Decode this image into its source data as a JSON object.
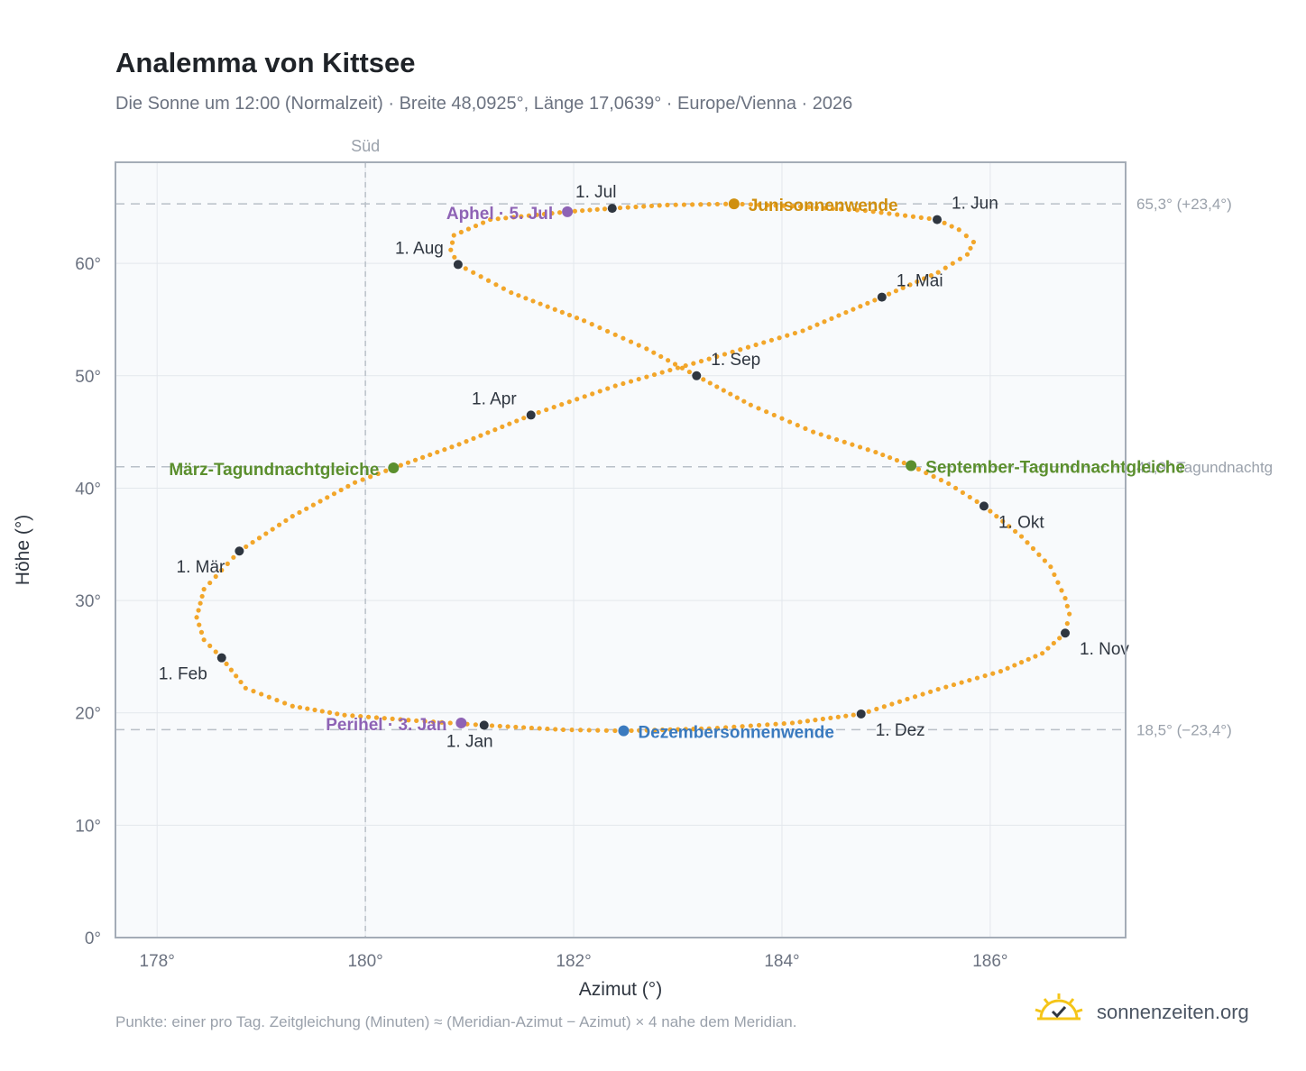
{
  "header": {
    "title": "Analemma von Kittsee",
    "subtitle": "Die Sonne um 12:00 (Normalzeit) · Breite 48,0925°, Länge 17,0639° · Europe/Vienna · 2026"
  },
  "footer": {
    "note": "Punkte: einer pro Tag. Zeitgleichung (Minuten) ≈ (Meridian-Azimut − Azimut) × 4 nahe dem Meridian.",
    "brand": "sonnenzeiten.org"
  },
  "colors": {
    "curve": "#f2a62a",
    "month_marker": "#2f3640",
    "solstice_june": "#cf8f0f",
    "solstice_dec": "#3a7abf",
    "equinox": "#5b8f2e",
    "apsis": "#8e63b5",
    "grid": "#e3e7ec",
    "plot_bg": "#f8fafc",
    "axis_frame": "#a4acb7",
    "reference_line": "#b9c0c8",
    "logo": "#f5c518"
  },
  "icons": {
    "logo": "sun-check-icon"
  },
  "chart_data": {
    "type": "scatter",
    "xlabel": "Azimut (°)",
    "ylabel": "Höhe (°)",
    "xlim": [
      177.6,
      187.3
    ],
    "ylim": [
      0,
      69
    ],
    "x_ticks": [
      {
        "value": 178,
        "label": "178°"
      },
      {
        "value": 180,
        "label": "180°"
      },
      {
        "value": 182,
        "label": "182°"
      },
      {
        "value": 184,
        "label": "184°"
      },
      {
        "value": 186,
        "label": "186°"
      }
    ],
    "y_ticks": [
      {
        "value": 0,
        "label": "0°"
      },
      {
        "value": 10,
        "label": "10°"
      },
      {
        "value": 20,
        "label": "20°"
      },
      {
        "value": 30,
        "label": "30°"
      },
      {
        "value": 40,
        "label": "40°"
      },
      {
        "value": 50,
        "label": "50°"
      },
      {
        "value": 60,
        "label": "60°"
      }
    ],
    "grid": true,
    "south_line": {
      "x": 180,
      "label": "Süd"
    },
    "reference_lines": [
      {
        "y": 65.3,
        "label": "65,3° (+23,4°)"
      },
      {
        "y": 41.9,
        "label": "41,9° Tagundnachtg"
      },
      {
        "y": 18.5,
        "label": "18,5° (−23,4°)"
      }
    ],
    "month_points": [
      {
        "label": "1. Jan",
        "x": 181.14,
        "y": 18.9,
        "anchor": "below"
      },
      {
        "label": "1. Feb",
        "x": 178.62,
        "y": 24.9,
        "anchor": "below-left"
      },
      {
        "label": "1. Mär",
        "x": 178.79,
        "y": 34.4,
        "anchor": "below-left"
      },
      {
        "label": "1. Apr",
        "x": 181.59,
        "y": 46.5,
        "anchor": "above-left"
      },
      {
        "label": "1. Mai",
        "x": 184.96,
        "y": 57.0,
        "anchor": "above-right"
      },
      {
        "label": "1. Jun",
        "x": 185.49,
        "y": 63.9,
        "anchor": "above-right"
      },
      {
        "label": "1. Jul",
        "x": 182.37,
        "y": 64.9,
        "anchor": "above-left"
      },
      {
        "label": "1. Aug",
        "x": 180.89,
        "y": 59.9,
        "anchor": "above-left"
      },
      {
        "label": "1. Sep",
        "x": 183.18,
        "y": 50.0,
        "anchor": "above-right"
      },
      {
        "label": "1. Okt",
        "x": 185.94,
        "y": 38.4,
        "anchor": "below-right"
      },
      {
        "label": "1. Nov",
        "x": 186.72,
        "y": 27.1,
        "anchor": "below-right"
      },
      {
        "label": "1. Dez",
        "x": 184.76,
        "y": 19.9,
        "anchor": "below-right"
      }
    ],
    "special_points": [
      {
        "label": "Junisonnenwende",
        "x": 183.54,
        "y": 65.3,
        "color": "#cf8f0f",
        "anchor": "right"
      },
      {
        "label": "Dezembersonnenwende",
        "x": 182.48,
        "y": 18.4,
        "color": "#3a7abf",
        "anchor": "right"
      },
      {
        "label": "März-Tagundnachtgleiche",
        "x": 180.27,
        "y": 41.8,
        "color": "#5b8f2e",
        "anchor": "left"
      },
      {
        "label": "September-Tagundnachtgleiche",
        "x": 185.24,
        "y": 42.0,
        "color": "#5b8f2e",
        "anchor": "right"
      },
      {
        "label": "Aphel · 5. Jul",
        "x": 181.94,
        "y": 64.6,
        "color": "#8e63b5",
        "anchor": "left"
      },
      {
        "label": "Perihel · 3. Jan",
        "x": 180.92,
        "y": 19.1,
        "color": "#8e63b5",
        "anchor": "left"
      }
    ],
    "analemma_path": [
      [
        181.14,
        18.9
      ],
      [
        180.49,
        19.3
      ],
      [
        179.8,
        19.8
      ],
      [
        179.3,
        20.6
      ],
      [
        178.85,
        22.2
      ],
      [
        178.62,
        24.9
      ],
      [
        178.45,
        26.5
      ],
      [
        178.38,
        28.5
      ],
      [
        178.45,
        31.0
      ],
      [
        178.79,
        34.4
      ],
      [
        179.3,
        37.5
      ],
      [
        179.9,
        40.5
      ],
      [
        180.27,
        41.8
      ],
      [
        180.9,
        43.9
      ],
      [
        181.59,
        46.5
      ],
      [
        182.4,
        49.1
      ],
      [
        183.3,
        51.5
      ],
      [
        184.2,
        54.0
      ],
      [
        184.96,
        57.0
      ],
      [
        185.5,
        59.2
      ],
      [
        185.78,
        60.8
      ],
      [
        185.84,
        61.9
      ],
      [
        185.7,
        63.0
      ],
      [
        185.49,
        63.9
      ],
      [
        184.8,
        64.7
      ],
      [
        184.1,
        65.1
      ],
      [
        183.54,
        65.3
      ],
      [
        182.9,
        65.2
      ],
      [
        182.37,
        64.9
      ],
      [
        181.94,
        64.6
      ],
      [
        181.2,
        63.9
      ],
      [
        180.85,
        62.5
      ],
      [
        180.82,
        61.2
      ],
      [
        180.89,
        59.9
      ],
      [
        181.4,
        57.4
      ],
      [
        182.1,
        54.9
      ],
      [
        182.7,
        52.4
      ],
      [
        183.18,
        50.0
      ],
      [
        183.7,
        47.4
      ],
      [
        184.3,
        45.0
      ],
      [
        184.9,
        43.2
      ],
      [
        185.24,
        42.0
      ],
      [
        185.6,
        40.4
      ],
      [
        185.94,
        38.4
      ],
      [
        186.3,
        35.7
      ],
      [
        186.58,
        33.0
      ],
      [
        186.72,
        30.2
      ],
      [
        186.76,
        28.8
      ],
      [
        186.72,
        27.1
      ],
      [
        186.5,
        25.3
      ],
      [
        186.1,
        23.7
      ],
      [
        185.5,
        22.1
      ],
      [
        184.76,
        19.9
      ],
      [
        184.1,
        19.1
      ],
      [
        183.3,
        18.6
      ],
      [
        182.48,
        18.4
      ],
      [
        181.9,
        18.5
      ],
      [
        181.14,
        18.9
      ]
    ]
  }
}
